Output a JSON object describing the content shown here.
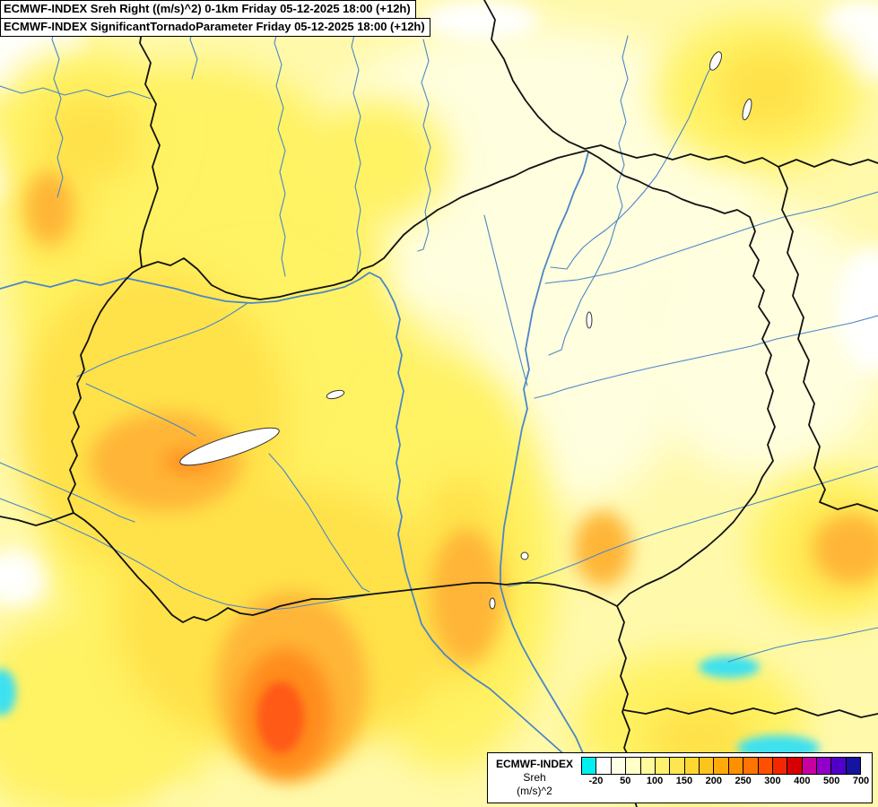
{
  "header": {
    "line1": "ECMWF-INDEX Sreh Right ((m/s)^2) 0-1km Friday 05-12-2025 18:00 (+12h)",
    "line2": "ECMWF-INDEX SignificantTornadoParameter Friday 05-12-2025 18:00 (+12h)"
  },
  "legend": {
    "model": "ECMWF-INDEX",
    "parameter": "Sreh",
    "units": "(m/s)^2",
    "ticks": [
      "-20",
      "50",
      "100",
      "150",
      "200",
      "250",
      "300",
      "400",
      "500",
      "700"
    ],
    "colors": [
      "#00F0F0",
      "#FFFFFF",
      "#FFFFE6",
      "#FFFFC8",
      "#FFFA9B",
      "#FFF06E",
      "#FFE550",
      "#FFD732",
      "#FFC31E",
      "#FFAA0A",
      "#FF9100",
      "#FF7300",
      "#FF5000",
      "#F02800",
      "#D70000",
      "#C800A0",
      "#9100C8",
      "#5000C8",
      "#1414A0"
    ]
  },
  "map": {
    "colors": {
      "base": "#FFF9AC",
      "pale": "#FFFEDE",
      "white": "#FFFFFF",
      "yellow": "#FFF263",
      "gold": "#FFE14A",
      "orange": "#FFB637",
      "deep_orange": "#FF8C1E",
      "red": "#FF5A14",
      "cyan": "#3CE1F0",
      "border": "#111111",
      "river": "#4A86C8",
      "lake_fill": "#FFFFFF",
      "lake_stroke": "#333333"
    }
  }
}
